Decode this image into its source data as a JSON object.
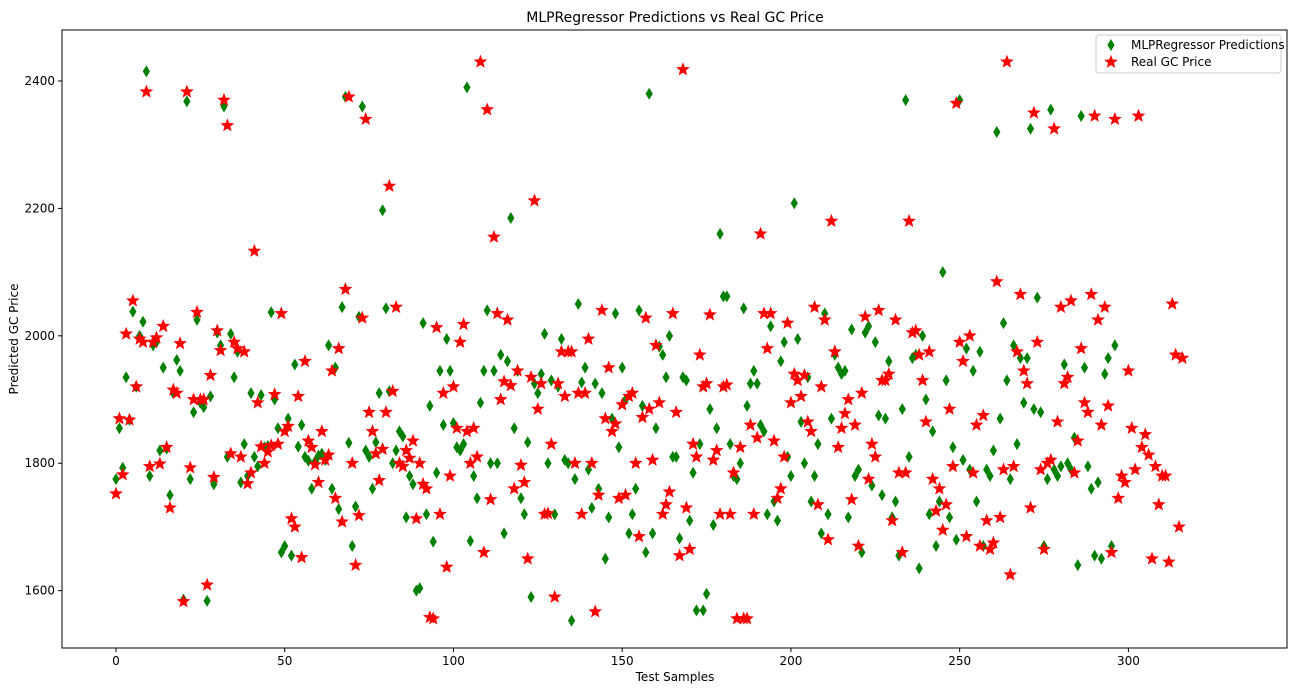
{
  "chart_data": {
    "type": "scatter",
    "title": "MLPRegressor Predictions vs Real GC Price",
    "xlabel": "Test Samples",
    "ylabel": "Predicted GC Price",
    "xlim": [
      -16,
      347
    ],
    "ylim": [
      1510,
      2480
    ],
    "xticks": [
      0,
      50,
      100,
      150,
      200,
      250,
      300
    ],
    "yticks": [
      1600,
      1800,
      2000,
      2200,
      2400
    ],
    "legend_position": "upper right",
    "grid": false,
    "series": [
      {
        "name": "MLPRegressor Predictions",
        "marker": "diamond",
        "color": "#008000",
        "values": [
          1775,
          1855,
          1793,
          1935,
          1868,
          2038,
          1920,
          2000,
          2022,
          2415,
          1780,
          1985,
          1990,
          1820,
          1950,
          1823,
          1750,
          1910,
          1962,
          1945,
          1586,
          2368,
          1775,
          1880,
          2025,
          1895,
          1888,
          1584,
          1905,
          1767,
          2005,
          1985,
          2360,
          1810,
          2003,
          1935,
          1975,
          1770,
          1830,
          1780,
          1910,
          1810,
          1795,
          1907,
          1825,
          1827,
          2037,
          1900,
          1855,
          1660,
          1670,
          1870,
          1655,
          1955,
          1826,
          1860,
          1810,
          1804,
          1760,
          1803,
          1812,
          1815,
          1805,
          1985,
          1760,
          1950,
          1728,
          2045,
          2375,
          1832,
          1670,
          1732,
          2030,
          2360,
          1820,
          1810,
          1760,
          1833,
          1910,
          2197,
          2043,
          1913,
          1800,
          1820,
          1850,
          1842,
          1715,
          1780,
          1767,
          1600,
          1604,
          2020,
          1720,
          1890,
          1677,
          1785,
          1945,
          1860,
          1995,
          1945,
          1863,
          1825,
          1820,
          1830,
          2390,
          1678,
          1780,
          1745,
          1895,
          1945,
          2040,
          1800,
          1945,
          1800,
          1970,
          1690,
          1960,
          2185,
          1855,
          1945,
          1745,
          1720,
          1833,
          1590,
          1925,
          1910,
          1940,
          2003,
          1800,
          1930,
          1720,
          1920,
          1995,
          1805,
          1800,
          1553,
          1775,
          2050,
          1927,
          1950,
          1790,
          1730,
          1925,
          1760,
          1910,
          1650,
          1715,
          1870,
          2035,
          1825,
          1950,
          1900,
          1690,
          1720,
          1760,
          2040,
          1890,
          1660,
          2380,
          1690,
          1855,
          1983,
          1970,
          1935,
          2000,
          1810,
          1810,
          1682,
          1935,
          1930,
          1710,
          1785,
          1569,
          1830,
          1569,
          1595,
          1885,
          1703,
          1855,
          2160,
          2062,
          2062,
          1830,
          1780,
          1775,
          1800,
          2043,
          1890,
          1925,
          1945,
          1925,
          1860,
          1850,
          1720,
          2015,
          1740,
          1710,
          1960,
          1990,
          1810,
          1780,
          2208,
          1995,
          1865,
          1800,
          1935,
          1740,
          1780,
          1830,
          1690,
          2035,
          1720,
          1870,
          1970,
          1950,
          1940,
          1945,
          1715,
          2010,
          1780,
          1790,
          1660,
          2005,
          2015,
          1765,
          1990,
          1875,
          1750,
          1870,
          1960,
          1715,
          1740,
          1655,
          1885,
          2370,
          1810,
          1965,
          1970,
          1635,
          2000,
          1900,
          1720,
          1850,
          1670,
          1740,
          2100,
          1930,
          1715,
          1825,
          1680,
          2370,
          1805,
          1980,
          1790,
          1945,
          1740,
          1975,
          1670,
          1790,
          1780,
          1820,
          2320,
          1870,
          2020,
          1930,
          1775,
          1985,
          1830,
          1965,
          1895,
          1965,
          2325,
          1885,
          2060,
          1880,
          1670,
          1775,
          2355,
          1790,
          1780,
          1795,
          1955,
          1800,
          1790,
          1840,
          1640,
          2345,
          1950,
          1795,
          1760,
          1655,
          1770,
          1650,
          1940,
          1965,
          1670,
          1985
        ]
      },
      {
        "name": "Real GC Price",
        "marker": "star",
        "color": "#ff0000",
        "values": [
          1752,
          1870,
          1782,
          2003,
          1868,
          2055,
          1920,
          1995,
          1990,
          2383,
          1795,
          1990,
          1997,
          1799,
          2015,
          1825,
          1730,
          1915,
          1910,
          1988,
          1583,
          2383,
          1793,
          1900,
          2037,
          1900,
          1900,
          1609,
          1938,
          1778,
          2008,
          1977,
          2370,
          2330,
          1815,
          1990,
          1980,
          1810,
          1975,
          1768,
          1785,
          2133,
          1895,
          1826,
          1800,
          1818,
          1828,
          1908,
          1830,
          2035,
          1850,
          1858,
          1713,
          1700,
          1905,
          1652,
          1960,
          1835,
          1825,
          1798,
          1770,
          1850,
          1805,
          1813,
          1945,
          1745,
          1980,
          1708,
          2073,
          2375,
          1800,
          1640,
          1718,
          2028,
          2340,
          1880,
          1850,
          1815,
          1773,
          1822,
          1880,
          2235,
          1913,
          2045,
          1800,
          1795,
          1820,
          1808,
          1835,
          1713,
          1800,
          1767,
          1760,
          1558,
          1556,
          2013,
          1720,
          1910,
          1637,
          1780,
          1920,
          1855,
          1990,
          2018,
          1850,
          1800,
          1855,
          1810,
          2430,
          1660,
          2355,
          1743,
          2155,
          2035,
          1900,
          1928,
          2025,
          1922,
          1760,
          1945,
          1797,
          1770,
          1650,
          1935,
          2212,
          1885,
          1925,
          1720,
          1721,
          1830,
          1590,
          1925,
          1975,
          1905,
          1975,
          1975,
          1800,
          1910,
          1720,
          1910,
          1995,
          1800,
          1567,
          1750,
          2040,
          1870,
          1950,
          1850,
          1862,
          1745,
          1892,
          1750,
          1905,
          1910,
          1800,
          1685,
          1872,
          2028,
          1885,
          1805,
          1985,
          1895,
          1720,
          1735,
          1755,
          2035,
          1880,
          1655,
          2418,
          1730,
          1665,
          1830,
          1810,
          1970,
          1920,
          1925,
          2033,
          1805,
          1820,
          1720,
          1920,
          1923,
          1720,
          1785,
          1556,
          1825,
          1556,
          1556,
          1860,
          1720,
          1840,
          2160,
          2035,
          1980,
          2035,
          1835,
          1745,
          1760,
          1810,
          2020,
          1895,
          1940,
          1930,
          1905,
          1938,
          1865,
          1850,
          2045,
          1735,
          1920,
          2025,
          1680,
          2180,
          1975,
          1825,
          1855,
          1878,
          1900,
          1743,
          1860,
          1670,
          1910,
          2030,
          1775,
          1830,
          1810,
          2040,
          1930,
          1930,
          1940,
          1710,
          2025,
          1785,
          1660,
          1785,
          2180,
          2005,
          2008,
          1970,
          1930,
          1865,
          1975,
          1775,
          1725,
          1760,
          1695,
          1735,
          1885,
          1795,
          2365,
          1990,
          1960,
          1685,
          2000,
          1785,
          1860,
          1670,
          1875,
          1710,
          1665,
          1675,
          2085,
          1715,
          1790,
          2430,
          1625,
          1795,
          1975,
          2065,
          1945,
          1925,
          1730,
          2350,
          1990,
          1790,
          1665,
          1800,
          1805,
          2325,
          1865,
          2045,
          1925,
          1935,
          2055,
          1785,
          1835,
          1980,
          1895,
          1880,
          2065,
          2345,
          2025,
          1860,
          2045,
          1890,
          1660,
          2340,
          1745,
          1780,
          1770,
          1945,
          1855,
          1790,
          2345,
          1825,
          1845,
          1813,
          1650,
          1795,
          1735,
          1780,
          1780,
          1645,
          2050,
          1970,
          1700,
          1965
        ]
      }
    ]
  }
}
